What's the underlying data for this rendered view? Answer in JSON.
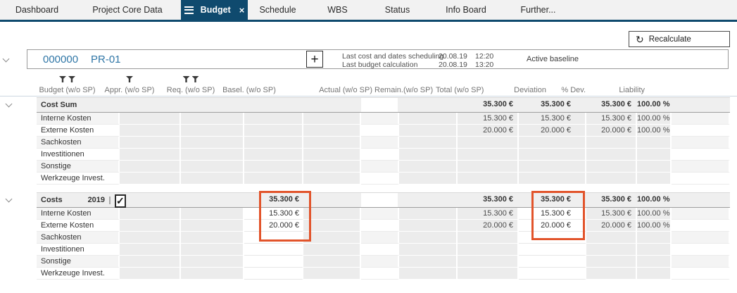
{
  "tabs": [
    {
      "label": "Dashboard",
      "active": false
    },
    {
      "label": "Project Core Data",
      "active": false
    },
    {
      "label": "Budget",
      "active": true
    },
    {
      "label": "Schedule",
      "active": false
    },
    {
      "label": "WBS",
      "active": false
    },
    {
      "label": "Status",
      "active": false
    },
    {
      "label": "Info Board",
      "active": false
    },
    {
      "label": "Further...",
      "active": false
    }
  ],
  "toolbar": {
    "recalculate_label": "Recalculate",
    "recalculate_icon": "refresh-icon"
  },
  "project": {
    "id": "000000",
    "code": "PR-01",
    "add_icon": "plus-icon",
    "info": [
      {
        "label": "Last cost and dates scheduling",
        "date": "20.08.19",
        "time": "12:20"
      },
      {
        "label": "Last budget calculation",
        "date": "20.08.19",
        "time": "13:20"
      }
    ],
    "baseline": "Active baseline"
  },
  "table": {
    "columns": [
      {
        "key": "budget",
        "label": "Budget (w/o SP)",
        "filters": 2,
        "align": "center"
      },
      {
        "key": "appr",
        "label": "Appr. (w/o SP)",
        "filters": 1,
        "align": "center"
      },
      {
        "key": "req",
        "label": "Req. (w/o SP)",
        "filters": 2,
        "align": "center"
      },
      {
        "key": "basel",
        "label": "Basel. (w/o SP)",
        "filters": 0,
        "align": "center"
      },
      {
        "key": "actual",
        "label": "Actual (w/o SP)",
        "filters": 0,
        "align": "right"
      },
      {
        "key": "remain",
        "label": "Remain.(w/o SP)",
        "filters": 0,
        "align": "right"
      },
      {
        "key": "total",
        "label": "Total (w/o SP)",
        "filters": 0,
        "align": "right"
      },
      {
        "key": "deviation",
        "label": "Deviation",
        "filters": 0,
        "align": "right"
      },
      {
        "key": "pdev",
        "label": "% Dev.",
        "filters": 0,
        "align": "right"
      },
      {
        "key": "liability",
        "label": "Liability",
        "filters": 0,
        "align": "right"
      }
    ],
    "groups": [
      {
        "name": "Cost Sum",
        "year": "",
        "checkboxes": false,
        "editable_columns": [],
        "header_values": {
          "remain": "35.300 €",
          "total": "35.300 €",
          "deviation": "35.300 €",
          "pdev": "100.00 %"
        },
        "rows": [
          {
            "label": "Interne Kosten",
            "remain": "15.300 €",
            "total": "15.300 €",
            "deviation": "15.300 €",
            "pdev": "100.00 %"
          },
          {
            "label": "Externe Kosten",
            "remain": "20.000 €",
            "total": "20.000 €",
            "deviation": "20.000 €",
            "pdev": "100.00 %"
          },
          {
            "label": "Sachkosten"
          },
          {
            "label": "Investitionen"
          },
          {
            "label": "Sonstige"
          },
          {
            "label": "Werkzeuge Invest."
          }
        ]
      },
      {
        "name": "Costs",
        "year": "2019",
        "checkboxes": true,
        "checkbox_small_checked": false,
        "checkbox_big_checked": true,
        "check_icon": "checkmark-icon",
        "editable_columns": [
          "req",
          "total"
        ],
        "header_values": {
          "req": "35.300 €",
          "remain": "35.300 €",
          "total": "35.300 €",
          "deviation": "35.300 €",
          "pdev": "100.00 %"
        },
        "rows": [
          {
            "label": "Interne Kosten",
            "req": "15.300 €",
            "remain": "15.300 €",
            "total": "15.300 €",
            "deviation": "15.300 €",
            "pdev": "100.00 %"
          },
          {
            "label": "Externe Kosten",
            "req": "20.000 €",
            "remain": "20.000 €",
            "total": "20.000 €",
            "deviation": "20.000 €",
            "pdev": "100.00 %"
          },
          {
            "label": "Sachkosten"
          },
          {
            "label": "Investitionen"
          },
          {
            "label": "Sonstige"
          },
          {
            "label": "Werkzeuge Invest."
          }
        ]
      }
    ]
  },
  "annotations": {
    "highlight_color": "#e2542b",
    "highlighted_columns": [
      "req",
      "total"
    ]
  }
}
